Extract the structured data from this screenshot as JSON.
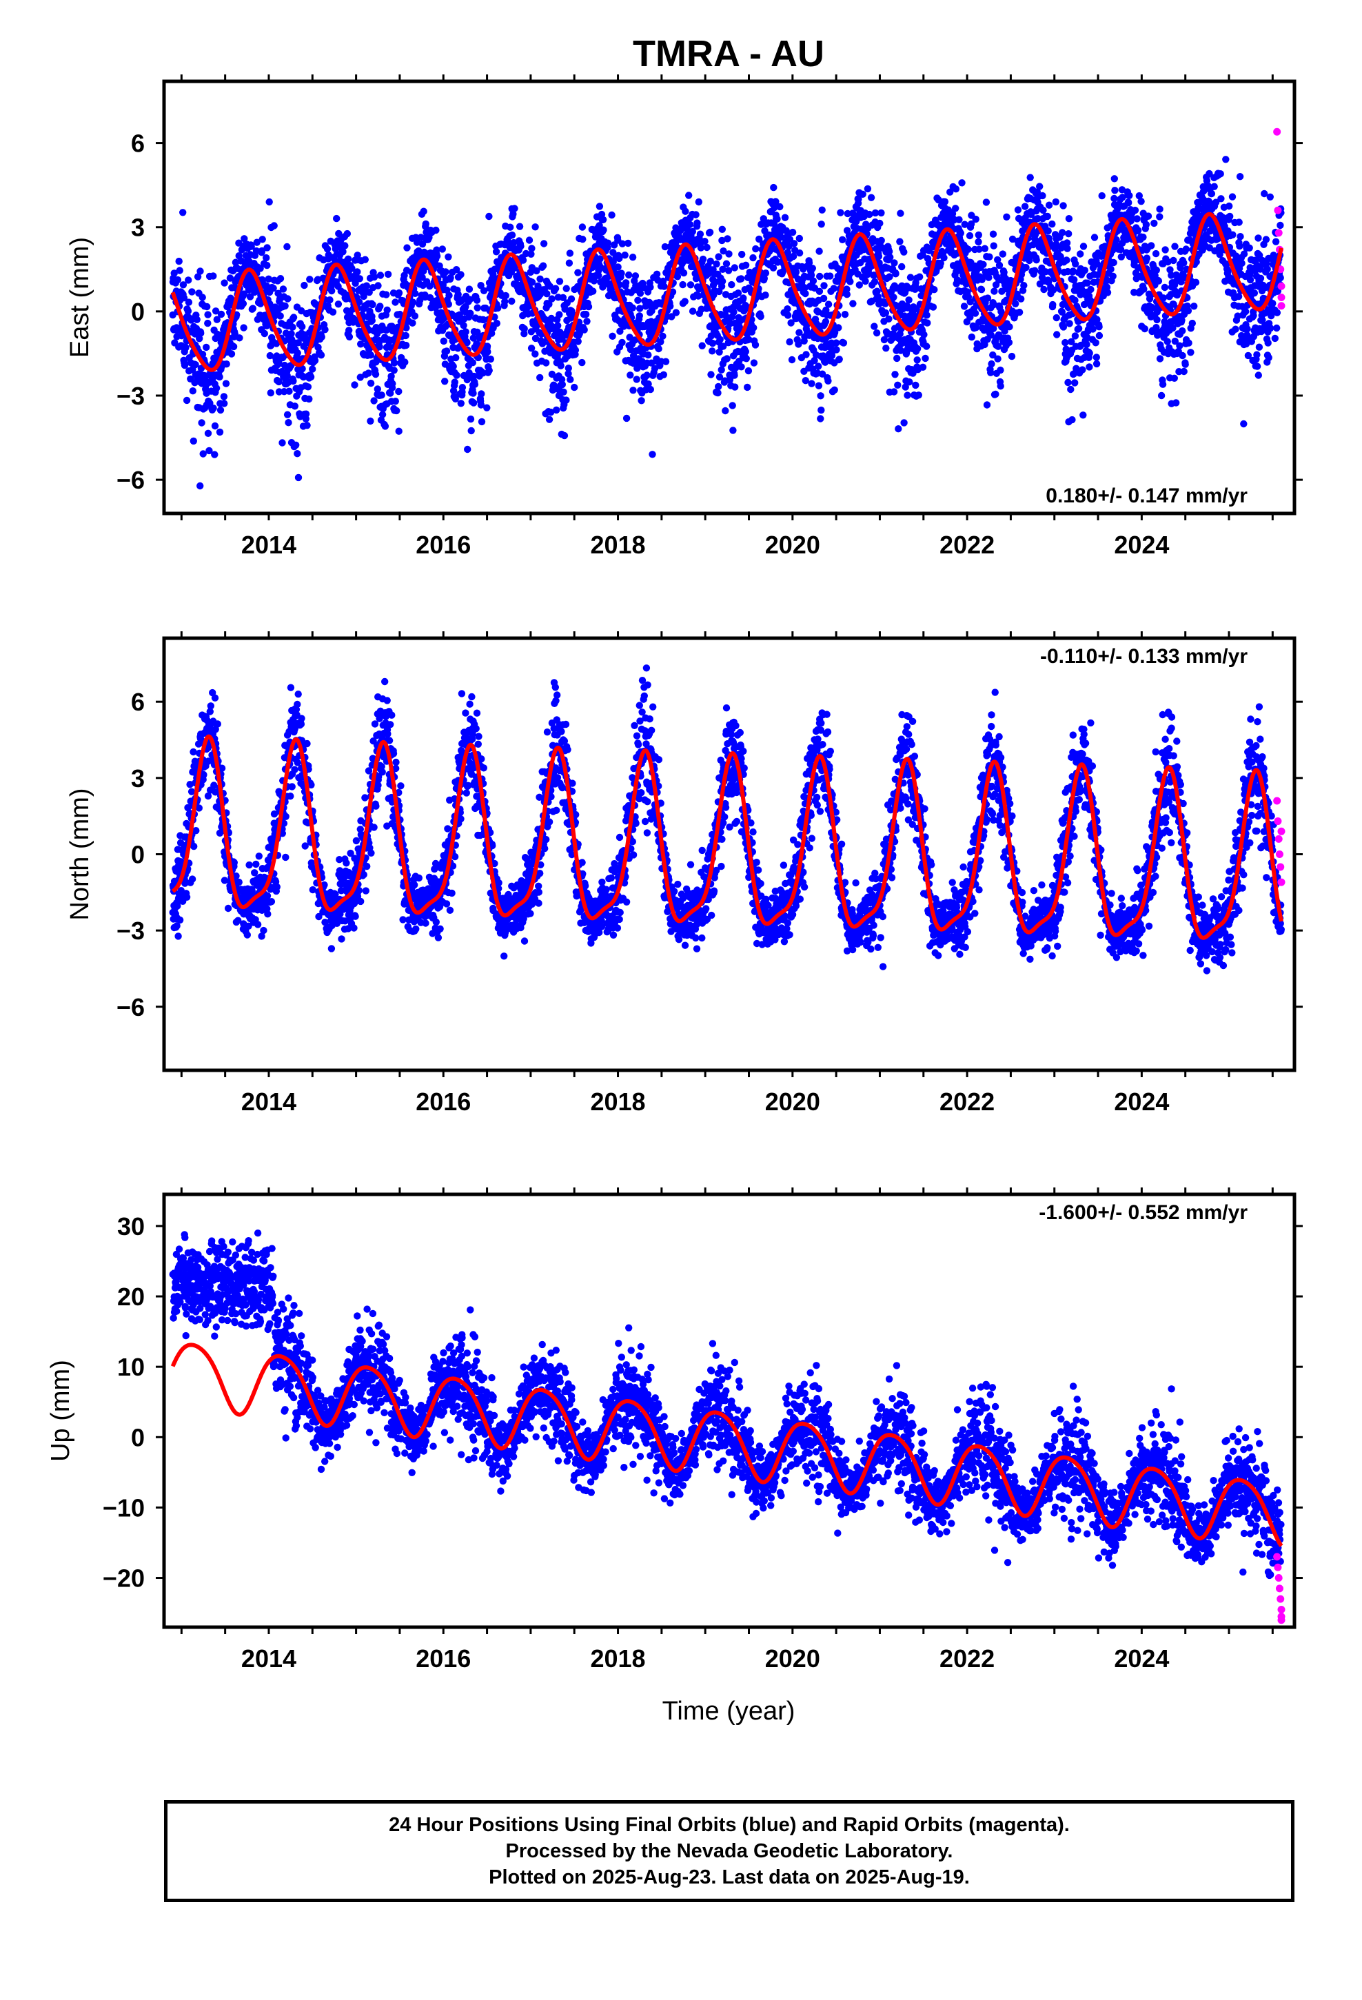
{
  "title": "TMRA - AU",
  "xlabel": "Time (year)",
  "footer": {
    "line1": "24 Hour Positions Using Final Orbits (blue) and Rapid Orbits (magenta).",
    "line2": "Processed by the Nevada Geodetic Laboratory.",
    "line3": "Plotted on 2025-Aug-23. Last data on 2025-Aug-19."
  },
  "colors": {
    "final": "#0000ff",
    "rapid": "#ff00ff",
    "fit": "#ff0000",
    "frame": "#000000"
  },
  "chart_data": [
    {
      "type": "scatter",
      "ylabel": "East (mm)",
      "rate_text": "0.180+/- 0.147 mm/yr",
      "rate_position": "bottom-right",
      "xlim": [
        2012.8,
        2025.75
      ],
      "ylim": [
        -7.2,
        8.2
      ],
      "xticks": [
        2014,
        2016,
        2018,
        2020,
        2022,
        2024
      ],
      "xtick_labels": [
        "2014",
        "2016",
        "2018",
        "2020",
        "2022",
        "2024"
      ],
      "yticks": [
        -6,
        -3,
        0,
        3,
        6
      ],
      "ytick_labels": [
        "−6",
        "−3",
        "0",
        "3",
        "6"
      ],
      "grid": false,
      "fit_model": {
        "t0": 2012.9,
        "t1": 2025.6,
        "offset": -0.55,
        "trend_mm_per_yr": 0.18,
        "annual_amp": 1.7,
        "annual_phase": 0.55,
        "semiannual_amp": 0.25,
        "semiannual_phase": 0.1,
        "scatter_sd": 1.25,
        "seed": 11
      },
      "series": [
        {
          "name": "Final Orbits",
          "color": "#0000ff"
        },
        {
          "name": "Rapid Orbits",
          "color": "#ff00ff",
          "x": [
            2025.55,
            2025.56,
            2025.57,
            2025.58,
            2025.59,
            2025.6,
            2025.6,
            2025.6
          ],
          "y": [
            6.4,
            3.6,
            2.8,
            2.2,
            1.5,
            0.9,
            0.5,
            0.2
          ]
        }
      ]
    },
    {
      "type": "scatter",
      "ylabel": "North (mm)",
      "rate_text": "-0.110+/- 0.133 mm/yr",
      "rate_position": "top-right",
      "xlim": [
        2012.8,
        2025.75
      ],
      "ylim": [
        -8.5,
        8.5
      ],
      "xticks": [
        2014,
        2016,
        2018,
        2020,
        2022,
        2024
      ],
      "xtick_labels": [
        "2014",
        "2016",
        "2018",
        "2020",
        "2022",
        "2024"
      ],
      "yticks": [
        -6,
        -3,
        0,
        3,
        6
      ],
      "ytick_labels": [
        "−6",
        "−3",
        "0",
        "3",
        "6"
      ],
      "grid": false,
      "fit_model": {
        "t0": 2012.9,
        "t1": 2025.6,
        "offset": 0.6,
        "trend_mm_per_yr": -0.11,
        "annual_amp": 3.2,
        "annual_phase": 0.05,
        "semiannual_amp": 0.9,
        "semiannual_phase": 0.2,
        "scatter_sd": 0.95,
        "seed": 23
      },
      "series": [
        {
          "name": "Final Orbits",
          "color": "#0000ff"
        },
        {
          "name": "Rapid Orbits",
          "color": "#ff00ff",
          "x": [
            2025.55,
            2025.56,
            2025.57,
            2025.58,
            2025.59,
            2025.6,
            2025.6
          ],
          "y": [
            2.1,
            1.3,
            0.6,
            0.0,
            -0.5,
            -1.1,
            0.9
          ]
        }
      ]
    },
    {
      "type": "scatter",
      "ylabel": "Up (mm)",
      "rate_text": "-1.600+/- 0.552 mm/yr",
      "rate_position": "top-right",
      "xlim": [
        2012.8,
        2025.75
      ],
      "ylim": [
        -27,
        34.5
      ],
      "xticks": [
        2014,
        2016,
        2018,
        2020,
        2022,
        2024
      ],
      "xtick_labels": [
        "2014",
        "2016",
        "2018",
        "2020",
        "2022",
        "2024"
      ],
      "yticks": [
        -20,
        -10,
        0,
        10,
        20,
        30
      ],
      "ytick_labels": [
        "−20",
        "−10",
        "0",
        "10",
        "20",
        "30"
      ],
      "grid": false,
      "fit_model": {
        "t0": 2012.9,
        "t1": 2025.6,
        "offset": 9.5,
        "trend_mm_per_yr": -1.6,
        "annual_amp": 4.5,
        "annual_phase": 0.9,
        "semiannual_amp": 0.6,
        "semiannual_phase": 0.3,
        "scatter_sd": 3.4,
        "seed": 37,
        "early_block": {
          "x_end": 2014.05,
          "center": 21.5,
          "sd": 3.0
        }
      },
      "series": [
        {
          "name": "Final Orbits",
          "color": "#0000ff"
        },
        {
          "name": "Rapid Orbits",
          "color": "#ff00ff",
          "x": [
            2025.55,
            2025.56,
            2025.57,
            2025.58,
            2025.59,
            2025.6,
            2025.6,
            2025.6
          ],
          "y": [
            -17,
            -18.5,
            -20,
            -21.5,
            -23,
            -24.5,
            -25.5,
            -26
          ]
        }
      ]
    }
  ]
}
